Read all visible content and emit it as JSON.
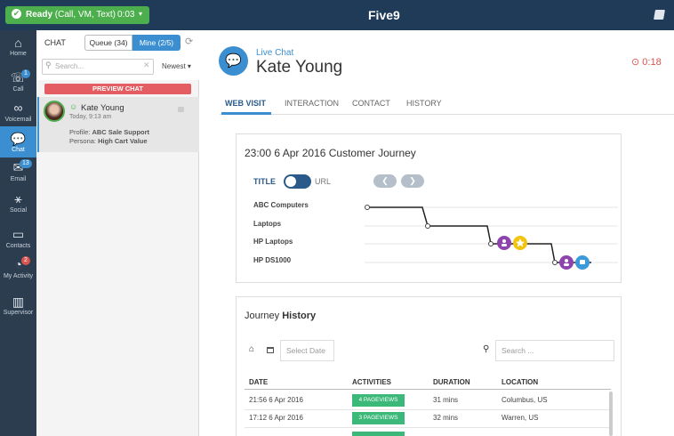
{
  "top_bar": {
    "status": "Ready",
    "status_detail": "(Call, VM, Text)",
    "status_timer": "0:03",
    "logo": "Five9"
  },
  "nav": [
    {
      "label": "Home"
    },
    {
      "label": "Call",
      "badge": "1"
    },
    {
      "label": "Voicemail"
    },
    {
      "label": "Chat"
    },
    {
      "label": "Email",
      "badge": "13"
    },
    {
      "label": "Social"
    },
    {
      "label": "Contacts"
    },
    {
      "label": "My Activity",
      "badge": "2"
    },
    {
      "label": "Supervisor"
    }
  ],
  "chat_panel": {
    "title": "CHAT",
    "tab_queue": "Queue (34)",
    "tab_mine": "Mine (2/5)",
    "search_placeholder": "Search...",
    "sort": "Newest",
    "preview_banner": "PREVIEW CHAT",
    "card": {
      "name": "Kate Young",
      "time": "Today, 9:13 am",
      "profile_label": "Profile:",
      "profile": "ABC Sale Support",
      "persona_label": "Persona:",
      "persona": "High Cart Value"
    }
  },
  "header": {
    "channel": "Live Chat",
    "name": "Kate Young",
    "timer": "0:18"
  },
  "tabs": [
    "WEB VISIT",
    "INTERACTION",
    "CONTACT",
    "HISTORY"
  ],
  "journey": {
    "title": "23:00 6 Apr 2016 Customer Journey",
    "toggle_left": "TITLE",
    "toggle_right": "URL",
    "pages": [
      "ABC Computers",
      "Laptops",
      "HP Laptops",
      "HP DS1000"
    ]
  },
  "history": {
    "title_prefix": "Journey",
    "title_bold": "History",
    "date_placeholder": "Select Date",
    "search_placeholder": "Search ...",
    "columns": [
      "DATE",
      "ACTIVITIES",
      "DURATION",
      "LOCATION"
    ],
    "rows": [
      [
        "21:56 6 Apr 2016",
        "4 PAGEVIEWS",
        "31 mins",
        "Columbus, US"
      ],
      [
        "17:12 6 Apr 2016",
        "3 PAGEVIEWS",
        "32 mins",
        "Warren, US"
      ]
    ]
  }
}
